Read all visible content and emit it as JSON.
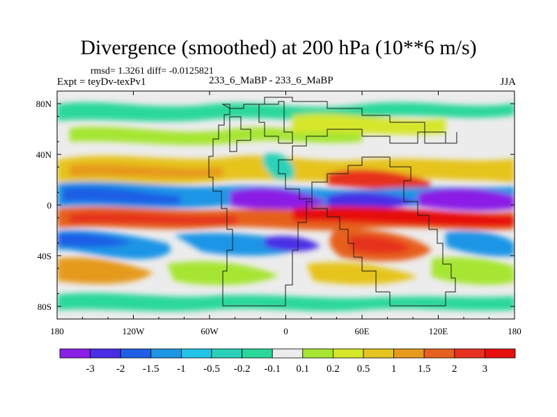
{
  "title": "Divergence (smoothed) at 200 hPa (10**6 m/s)",
  "stats": "rmsd= 1.3261  diff= -0.0125821",
  "expt": "Expt = teyDv-texPv1",
  "center_label": "233_6_MaBP - 233_6_MaBP",
  "season": "JJA",
  "axes": {
    "x_ticks": [
      {
        "lon": -180,
        "label": "180"
      },
      {
        "lon": -120,
        "label": "120W"
      },
      {
        "lon": -60,
        "label": "60W"
      },
      {
        "lon": 0,
        "label": "0"
      },
      {
        "lon": 60,
        "label": "60E"
      },
      {
        "lon": 120,
        "label": "120E"
      },
      {
        "lon": 180,
        "label": "180"
      }
    ],
    "y_ticks": [
      {
        "lat": 80,
        "label": "80N"
      },
      {
        "lat": 40,
        "label": "40N"
      },
      {
        "lat": 0,
        "label": "0"
      },
      {
        "lat": -40,
        "label": "40S"
      },
      {
        "lat": -80,
        "label": "80S"
      }
    ],
    "lon_range": [
      -180,
      180
    ],
    "lat_range": [
      -90,
      90
    ]
  },
  "colorbar": {
    "labels": [
      "-3",
      "-2",
      "-1.5",
      "-1",
      "-0.5",
      "-0.2",
      "-0.1",
      "0.1",
      "0.2",
      "0.5",
      "1",
      "1.5",
      "2",
      "3"
    ],
    "colors": [
      "#8a1fe6",
      "#4a2ee6",
      "#1f5fe6",
      "#1f95e6",
      "#22c3e6",
      "#2ad1b8",
      "#2bd89a",
      "#ececec",
      "#a6e632",
      "#d6e62a",
      "#e6c41f",
      "#e69a1f",
      "#e6601f",
      "#e6301f",
      "#e60f10"
    ]
  }
}
